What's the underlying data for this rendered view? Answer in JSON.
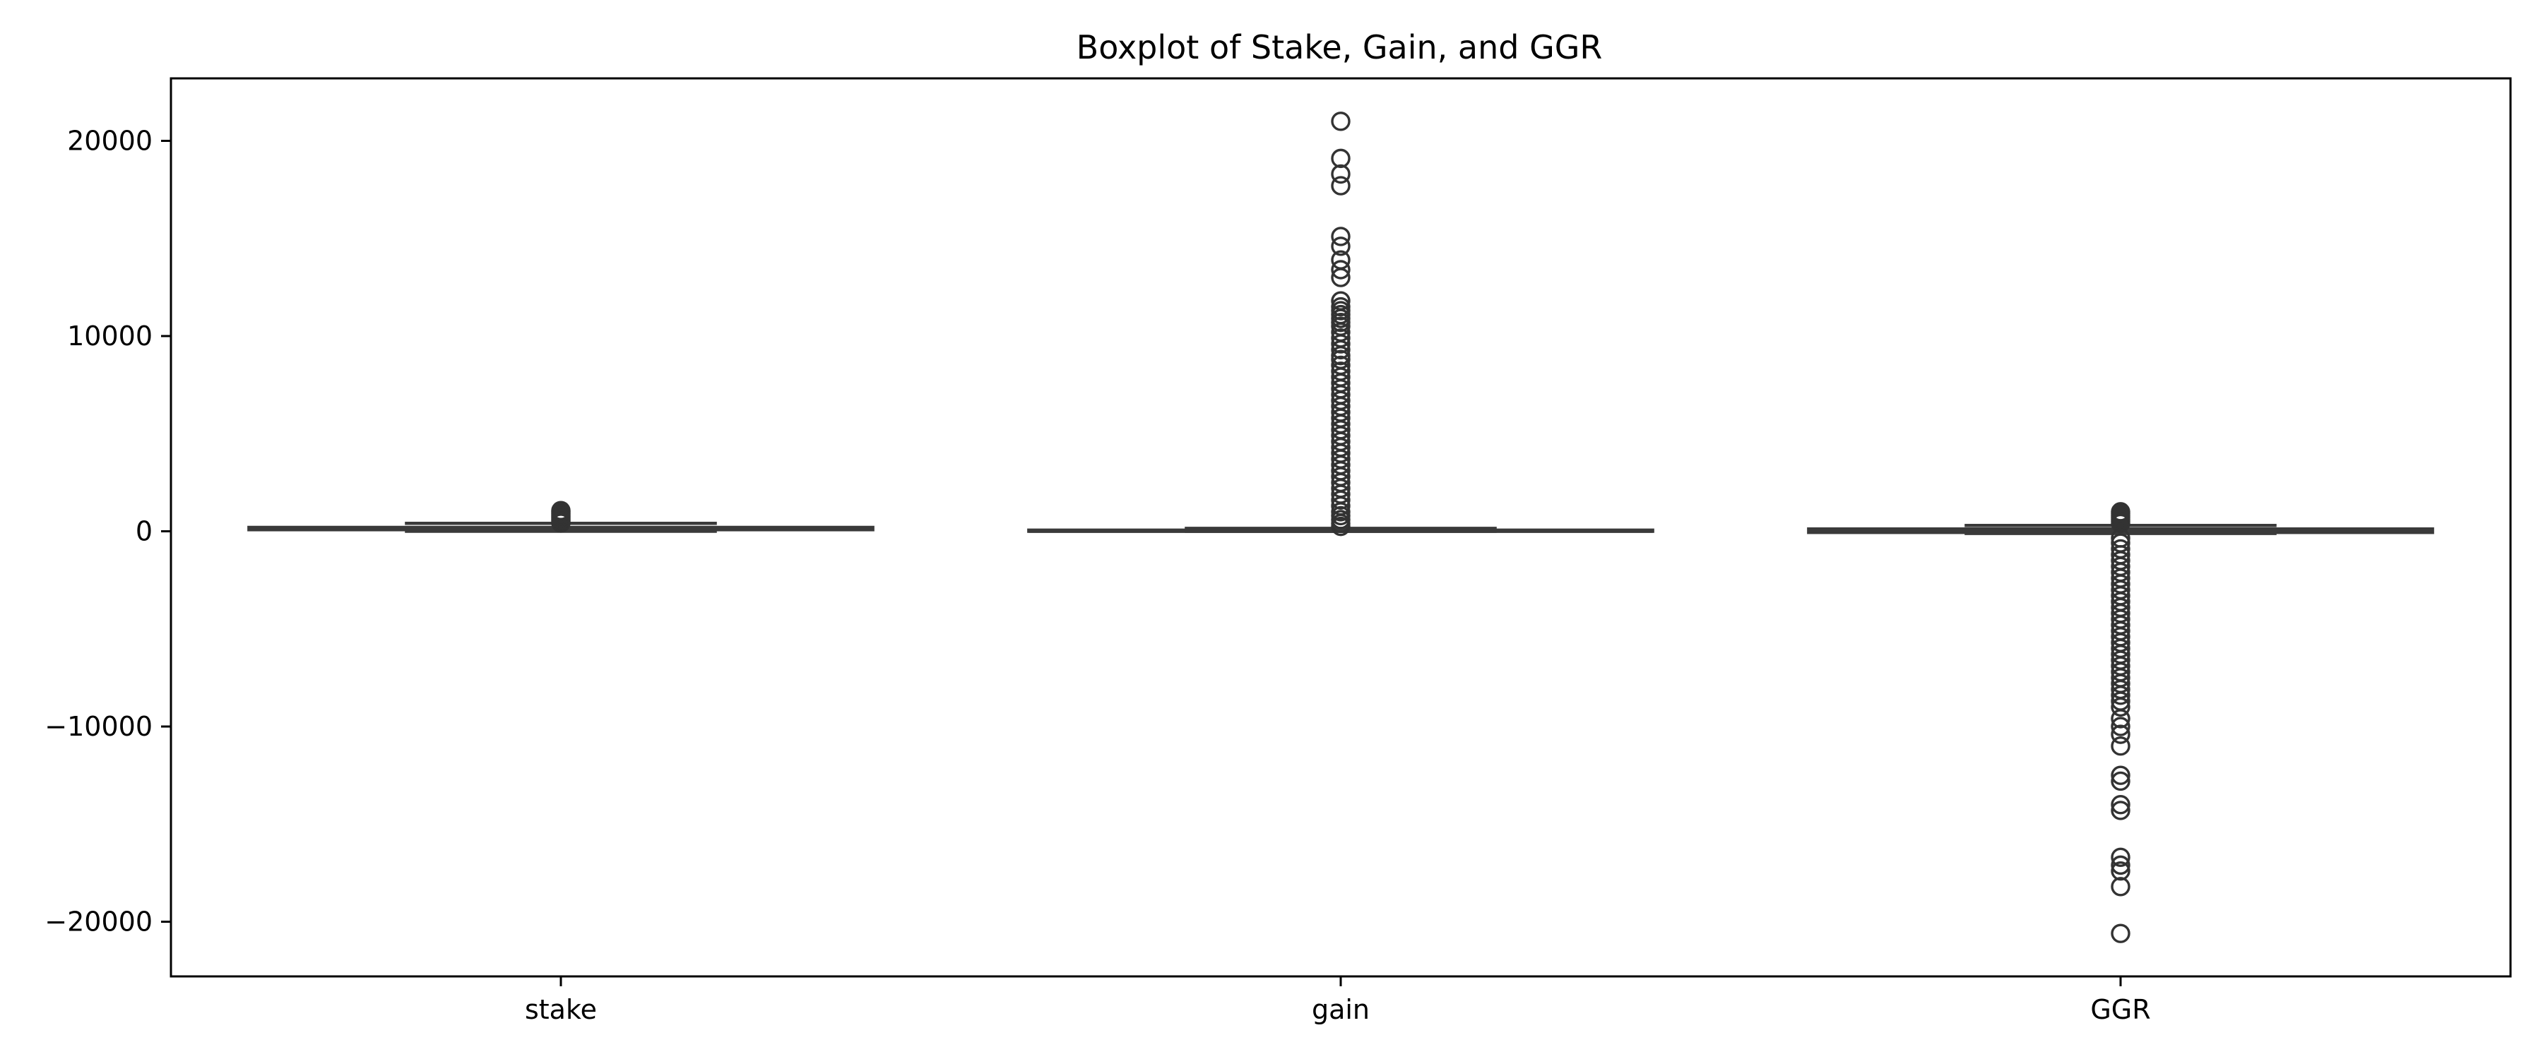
{
  "chart_data": {
    "type": "box",
    "title": "Boxplot of Stake, Gain, and GGR",
    "xlabel": "",
    "ylabel": "",
    "categories": [
      "stake",
      "gain",
      "GGR"
    ],
    "ylim": [
      -22800,
      23200
    ],
    "yticks": [
      {
        "value": 20000,
        "label": "20000"
      },
      {
        "value": 10000,
        "label": "10000"
      },
      {
        "value": 0,
        "label": "0"
      },
      {
        "value": -10000,
        "label": "−10000"
      },
      {
        "value": -20000,
        "label": "−20000"
      }
    ],
    "grid": false,
    "series": [
      {
        "category": "stake",
        "whisker_low": 0,
        "q1": 80,
        "median": 150,
        "q3": 200,
        "whisker_high": 410,
        "outliers": [
          420,
          480,
          540,
          600,
          660,
          720,
          780,
          840,
          900,
          960,
          1020,
          1060
        ]
      },
      {
        "category": "gain",
        "whisker_low": 0,
        "q1": 0,
        "median": 0,
        "q3": 60,
        "whisker_high": 150,
        "outliers": [
          21000,
          19100,
          18300,
          17700,
          15100,
          14600,
          13900,
          13400,
          13000,
          11800,
          11500,
          11300,
          11100,
          10900,
          10700,
          10500,
          10200,
          9900,
          9600,
          9300,
          9000,
          8800,
          8500,
          8200,
          7900,
          7600,
          7300,
          7000,
          6700,
          6400,
          6100,
          5800,
          5500,
          5200,
          4900,
          4600,
          4300,
          4000,
          3700,
          3400,
          3100,
          2800,
          2500,
          2200,
          1900,
          1600,
          1300,
          1000,
          800,
          600,
          400,
          250
        ]
      },
      {
        "category": "GGR",
        "whisker_low": -110,
        "q1": -60,
        "median": 0,
        "q3": 120,
        "whisker_high": 300,
        "outliers": [
          1000,
          900,
          800,
          700,
          600,
          500,
          400,
          -350,
          -600,
          -900,
          -1200,
          -1500,
          -1800,
          -2100,
          -2400,
          -2700,
          -3000,
          -3300,
          -3600,
          -3900,
          -4200,
          -4500,
          -4800,
          -5100,
          -5400,
          -5700,
          -6000,
          -6300,
          -6600,
          -6900,
          -7200,
          -7500,
          -7800,
          -8100,
          -8400,
          -8700,
          -9000,
          -9600,
          -10000,
          -10400,
          -11000,
          -12500,
          -12800,
          -14000,
          -14300,
          -16700,
          -17100,
          -17400,
          -18200,
          -20600
        ]
      }
    ]
  }
}
